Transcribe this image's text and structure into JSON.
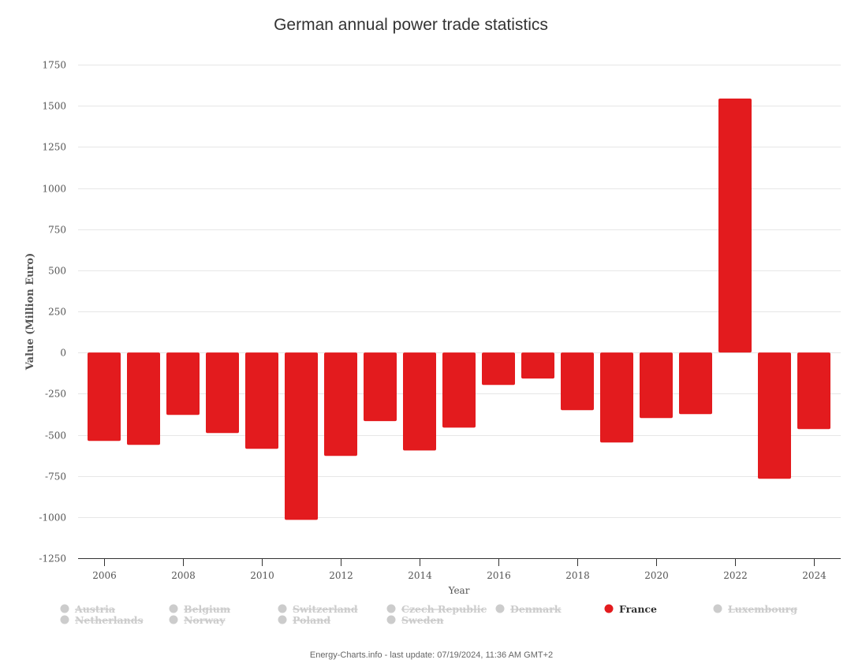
{
  "chart_data": {
    "type": "bar",
    "title": "German annual power trade statistics",
    "xlabel": "Year",
    "ylabel": "Value (Million Euro)",
    "ylim": [
      -1250,
      1750
    ],
    "yticks": [
      1750,
      1500,
      1250,
      1000,
      750,
      500,
      250,
      0,
      -250,
      -500,
      -750,
      -1000,
      -1250
    ],
    "xticks": [
      "2006",
      "2008",
      "2010",
      "2012",
      "2014",
      "2016",
      "2018",
      "2020",
      "2022",
      "2024"
    ],
    "grid": true,
    "categories": [
      "2006",
      "2007",
      "2008",
      "2009",
      "2010",
      "2011",
      "2012",
      "2013",
      "2014",
      "2015",
      "2016",
      "2017",
      "2018",
      "2019",
      "2020",
      "2021",
      "2022",
      "2023",
      "2024"
    ],
    "series": [
      {
        "name": "France",
        "color": "#e31b1e",
        "values": [
          -537,
          -561,
          -379,
          -489,
          -585,
          -1017,
          -628,
          -417,
          -595,
          -456,
          -197,
          -158,
          -350,
          -547,
          -398,
          -374,
          1544,
          -767,
          -465
        ]
      }
    ],
    "legend": {
      "placement": "bottom",
      "items": [
        {
          "label": "Austria",
          "active": false
        },
        {
          "label": "Belgium",
          "active": false
        },
        {
          "label": "Switzerland",
          "active": false
        },
        {
          "label": "Czech Republic",
          "active": false
        },
        {
          "label": "Denmark",
          "active": false
        },
        {
          "label": "France",
          "active": true
        },
        {
          "label": "Luxembourg",
          "active": false
        },
        {
          "label": "Netherlands",
          "active": false
        },
        {
          "label": "Norway",
          "active": false
        },
        {
          "label": "Poland",
          "active": false
        },
        {
          "label": "Sweden",
          "active": false
        }
      ]
    }
  },
  "credit": "Energy-Charts.info - last update: 07/19/2024, 11:36 AM GMT+2",
  "colors": {
    "active": "#e31b1e",
    "inactive": "#cccccc"
  }
}
